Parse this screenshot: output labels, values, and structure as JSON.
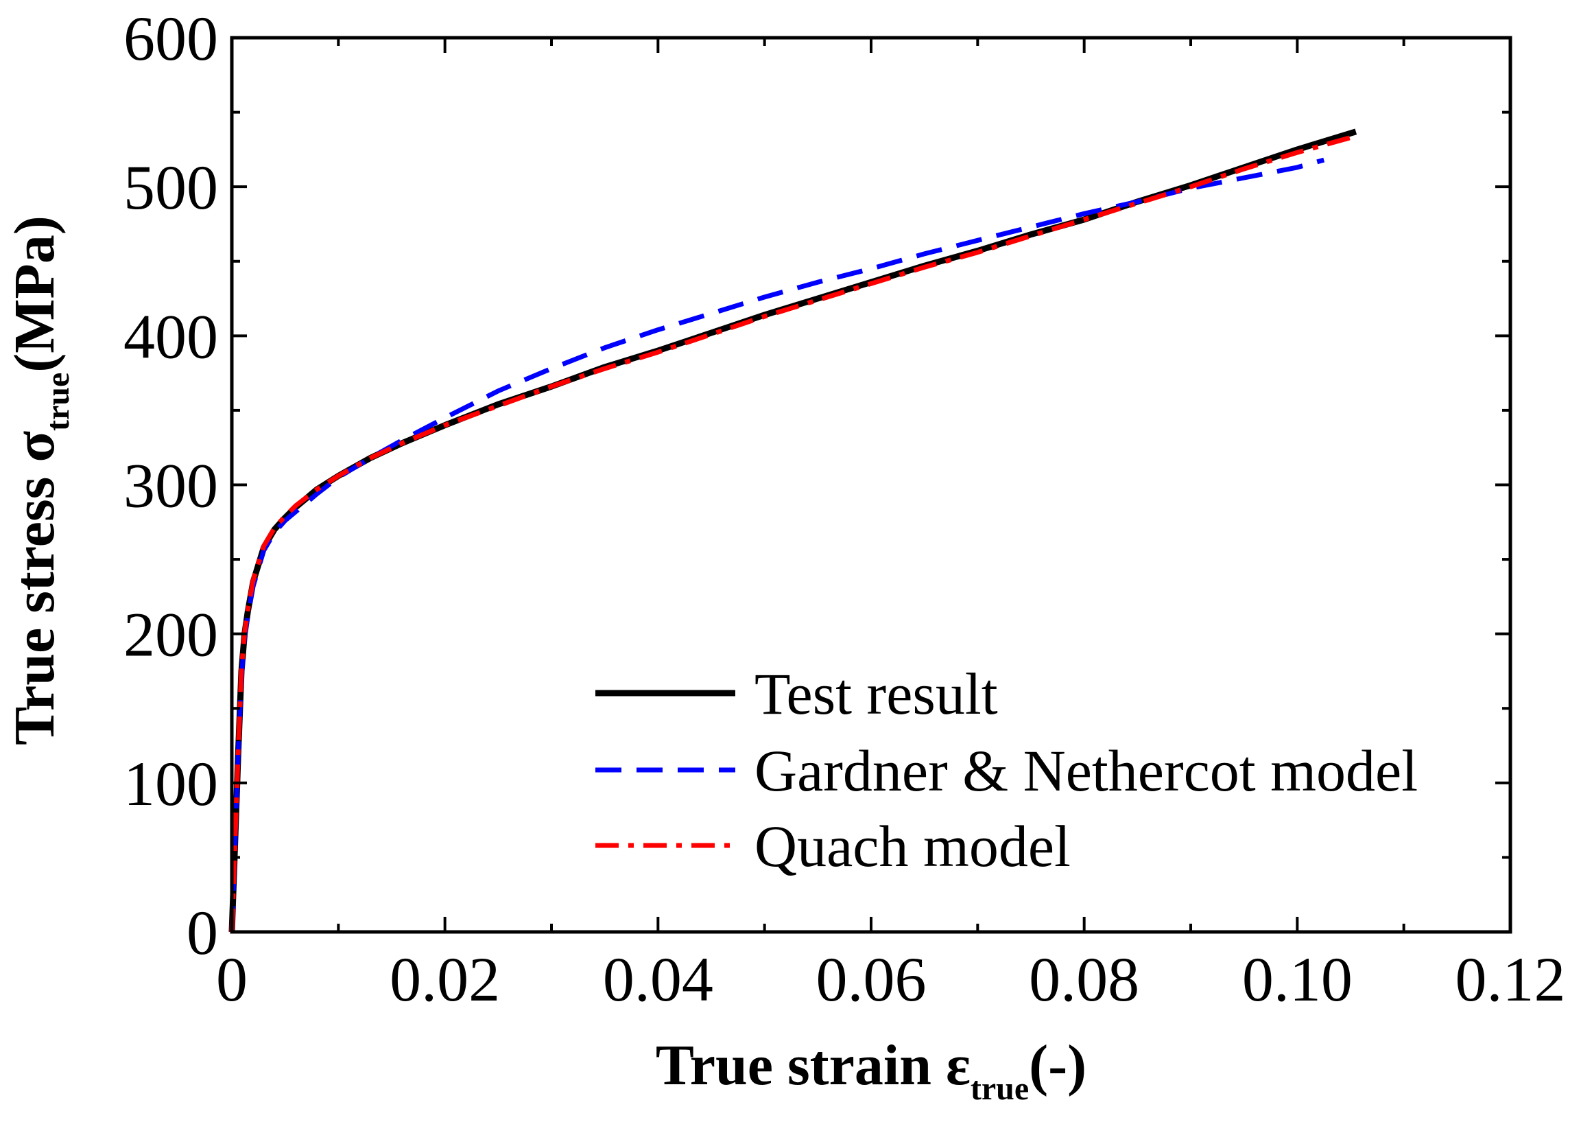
{
  "chart_data": {
    "type": "line",
    "title": "",
    "xlabel": {
      "main": "True strain ε",
      "sub": "true",
      "suffix": "(-)"
    },
    "ylabel": {
      "main": "True stress σ",
      "sub": "true",
      "suffix": "(MPa)"
    },
    "xlim": [
      0,
      0.12
    ],
    "ylim": [
      0,
      600
    ],
    "xticks": [
      0,
      0.02,
      0.04,
      0.06,
      0.08,
      0.1,
      0.12
    ],
    "xtick_labels": [
      "0",
      "0.02",
      "0.04",
      "0.06",
      "0.08",
      "0.10",
      "0.12"
    ],
    "yticks": [
      0,
      100,
      200,
      300,
      400,
      500,
      600
    ],
    "ytick_labels": [
      "0",
      "100",
      "200",
      "300",
      "400",
      "500",
      "600"
    ],
    "grid": false,
    "legend_position": "lower-right",
    "series": [
      {
        "name": "Test result",
        "color": "#000000",
        "style": "solid",
        "x": [
          0,
          0.0003,
          0.0006,
          0.0009,
          0.0012,
          0.0015,
          0.002,
          0.003,
          0.004,
          0.005,
          0.006,
          0.008,
          0.01,
          0.013,
          0.016,
          0.02,
          0.025,
          0.03,
          0.035,
          0.04,
          0.045,
          0.05,
          0.055,
          0.06,
          0.065,
          0.07,
          0.075,
          0.08,
          0.085,
          0.09,
          0.095,
          0.1,
          0.1055
        ],
        "y": [
          0,
          60,
          120,
          175,
          200,
          215,
          235,
          258,
          270,
          278,
          285,
          297,
          306,
          318,
          328,
          340,
          354,
          366,
          379,
          390,
          402,
          414,
          425,
          436,
          447,
          457,
          468,
          478,
          490,
          501,
          513,
          525,
          537
        ]
      },
      {
        "name": "Gardner & Nethercot model",
        "color": "#0000ff",
        "style": "dashed",
        "x": [
          0,
          0.0003,
          0.0006,
          0.0009,
          0.0012,
          0.0015,
          0.002,
          0.003,
          0.004,
          0.005,
          0.006,
          0.008,
          0.01,
          0.013,
          0.016,
          0.02,
          0.025,
          0.03,
          0.035,
          0.04,
          0.045,
          0.05,
          0.055,
          0.06,
          0.065,
          0.07,
          0.075,
          0.08,
          0.085,
          0.09,
          0.095,
          0.1,
          0.1025
        ],
        "y": [
          0,
          60,
          120,
          170,
          198,
          212,
          232,
          256,
          268,
          276,
          282,
          294,
          305,
          318,
          330,
          345,
          363,
          378,
          392,
          404,
          415,
          426,
          436,
          445,
          455,
          464,
          473,
          482,
          490,
          499,
          506,
          513,
          518
        ]
      },
      {
        "name": "Quach model",
        "color": "#ff0000",
        "style": "dashdot",
        "x": [
          0,
          0.0003,
          0.0006,
          0.0009,
          0.0012,
          0.0015,
          0.002,
          0.003,
          0.004,
          0.005,
          0.006,
          0.008,
          0.01,
          0.013,
          0.016,
          0.02,
          0.025,
          0.03,
          0.035,
          0.04,
          0.045,
          0.05,
          0.055,
          0.06,
          0.065,
          0.07,
          0.075,
          0.08,
          0.085,
          0.09,
          0.095,
          0.1,
          0.1055
        ],
        "y": [
          0,
          62,
          122,
          176,
          201,
          216,
          236,
          259,
          271,
          279,
          286,
          297,
          306,
          318,
          328,
          340,
          353,
          366,
          378,
          389,
          401,
          413,
          424,
          435,
          446,
          456,
          467,
          478,
          489,
          500,
          512,
          523,
          534
        ]
      }
    ]
  }
}
